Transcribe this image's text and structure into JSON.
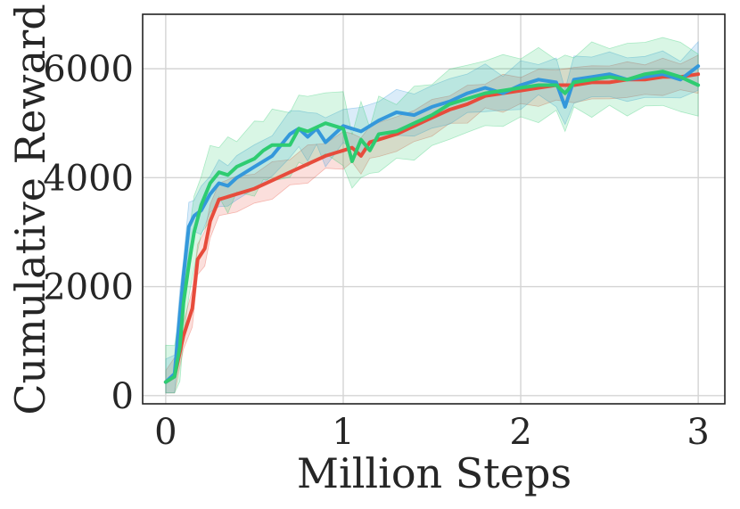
{
  "chart_data": {
    "type": "line",
    "title": "",
    "xlabel": "Million Steps",
    "ylabel": "Cumulative Reward",
    "xlim": [
      -0.13,
      3.15
    ],
    "ylim": [
      -150,
      7000
    ],
    "xticks": [
      0,
      1,
      2,
      3
    ],
    "xtick_labels": [
      "0",
      "1",
      "2",
      "3"
    ],
    "yticks": [
      0,
      2000,
      4000,
      6000
    ],
    "ytick_labels": [
      "0",
      "2000",
      "4000",
      "6000"
    ],
    "grid": true,
    "legend": "none",
    "series": [
      {
        "color": "#e74c3c",
        "band": 350,
        "x": [
          0,
          0.05,
          0.1,
          0.15,
          0.18,
          0.22,
          0.25,
          0.3,
          0.4,
          0.5,
          0.6,
          0.7,
          0.8,
          0.9,
          1.0,
          1.05,
          1.1,
          1.15,
          1.2,
          1.3,
          1.4,
          1.5,
          1.6,
          1.7,
          1.8,
          1.9,
          2.0,
          2.1,
          2.2,
          2.3,
          2.4,
          2.5,
          2.6,
          2.7,
          2.8,
          2.9,
          3.0
        ],
        "y": [
          250,
          350,
          1100,
          1600,
          2500,
          2700,
          3200,
          3600,
          3700,
          3800,
          3950,
          4100,
          4250,
          4400,
          4500,
          4550,
          4400,
          4650,
          4700,
          4800,
          4950,
          5100,
          5250,
          5350,
          5500,
          5550,
          5600,
          5650,
          5700,
          5700,
          5750,
          5750,
          5800,
          5800,
          5850,
          5850,
          5900
        ]
      },
      {
        "color": "#3498db",
        "band": 450,
        "x": [
          0,
          0.05,
          0.08,
          0.1,
          0.13,
          0.16,
          0.2,
          0.25,
          0.3,
          0.35,
          0.4,
          0.5,
          0.6,
          0.7,
          0.75,
          0.8,
          0.85,
          0.9,
          1.0,
          1.1,
          1.2,
          1.3,
          1.4,
          1.5,
          1.6,
          1.7,
          1.8,
          1.9,
          2.0,
          2.1,
          2.2,
          2.25,
          2.3,
          2.4,
          2.5,
          2.6,
          2.7,
          2.8,
          2.9,
          3.0
        ],
        "y": [
          250,
          400,
          1500,
          2200,
          3100,
          3300,
          3400,
          3700,
          3900,
          3850,
          4000,
          4200,
          4400,
          4800,
          4900,
          4750,
          4900,
          4650,
          4950,
          4850,
          5050,
          5200,
          5150,
          5300,
          5400,
          5550,
          5650,
          5550,
          5700,
          5800,
          5750,
          5300,
          5800,
          5850,
          5900,
          5800,
          5850,
          5900,
          5800,
          6050
        ]
      },
      {
        "color": "#2ecc71",
        "band": 700,
        "x": [
          0,
          0.05,
          0.08,
          0.1,
          0.13,
          0.16,
          0.2,
          0.25,
          0.3,
          0.35,
          0.4,
          0.5,
          0.55,
          0.6,
          0.7,
          0.75,
          0.8,
          0.9,
          1.0,
          1.05,
          1.1,
          1.15,
          1.2,
          1.3,
          1.4,
          1.5,
          1.6,
          1.7,
          1.8,
          1.9,
          2.0,
          2.1,
          2.2,
          2.25,
          2.3,
          2.4,
          2.5,
          2.6,
          2.7,
          2.8,
          2.9,
          3.0
        ],
        "y": [
          250,
          350,
          900,
          1700,
          2400,
          3000,
          3500,
          3900,
          4100,
          4050,
          4200,
          4350,
          4500,
          4600,
          4600,
          4900,
          4850,
          5000,
          4900,
          4300,
          4700,
          4500,
          4800,
          4850,
          5000,
          5150,
          5350,
          5450,
          5550,
          5600,
          5650,
          5700,
          5700,
          5550,
          5750,
          5800,
          5850,
          5800,
          5900,
          5950,
          5850,
          5700
        ]
      }
    ]
  }
}
